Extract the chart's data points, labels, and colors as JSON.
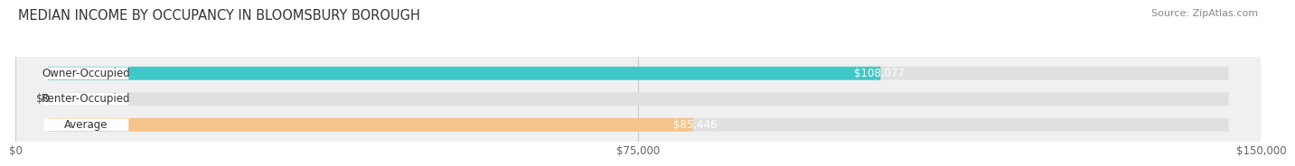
{
  "title": "MEDIAN INCOME BY OCCUPANCY IN BLOOMSBURY BOROUGH",
  "source": "Source: ZipAtlas.com",
  "categories": [
    "Owner-Occupied",
    "Renter-Occupied",
    "Average"
  ],
  "values": [
    108077,
    0,
    85446
  ],
  "bar_colors": [
    "#3ec8c8",
    "#c9a8d4",
    "#f5c48a"
  ],
  "bar_labels": [
    "$108,077",
    "$0",
    "$85,446"
  ],
  "xlim": [
    0,
    150000
  ],
  "xticks": [
    0,
    75000,
    150000
  ],
  "xtick_labels": [
    "$0",
    "$75,000",
    "$150,000"
  ],
  "background_color": "#f0f0f0",
  "bar_bg_color": "#e0e0e0",
  "label_bg_color": "#ffffff",
  "title_fontsize": 10.5,
  "source_fontsize": 8,
  "label_fontsize": 8.5,
  "value_fontsize": 8.5,
  "tick_fontsize": 8.5,
  "bar_height": 0.52,
  "fig_bg_color": "#ffffff"
}
